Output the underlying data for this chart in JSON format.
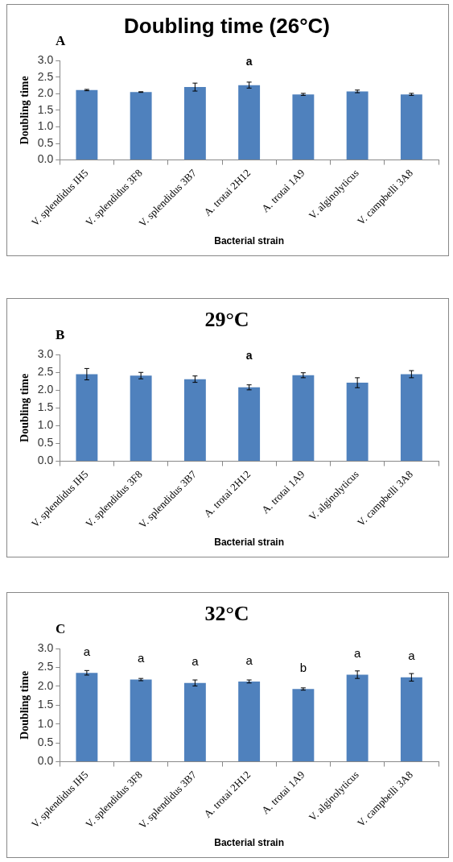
{
  "chart_data": [
    {
      "type": "bar",
      "title": "Doubling time (26°C)",
      "xlabel": "Bacterial strain",
      "ylabel": "Doubling time",
      "categories": [
        "V. splendidus IH5",
        "V. splendidus 3F8",
        "V. splendidus 3B7",
        "A. trotai 2H12",
        "A. trotai 1A9",
        "V. alginolyticus",
        "V. campbelli 3A8"
      ],
      "values": [
        2.11,
        2.05,
        2.2,
        2.26,
        1.98,
        2.07,
        1.98
      ],
      "errors": [
        0.02,
        0.01,
        0.12,
        0.09,
        0.03,
        0.04,
        0.03
      ],
      "color": "#4f81bd",
      "ylim": [
        0,
        3
      ],
      "yticks": [
        {
          "value": 0,
          "label": "0.0"
        },
        {
          "value": 0.5,
          "label": "0.5"
        },
        {
          "value": 1,
          "label": "1.0"
        },
        {
          "value": 1.5,
          "label": "1.5"
        },
        {
          "value": 2,
          "label": "2.0"
        },
        {
          "value": 2.5,
          "label": "2.5"
        },
        {
          "value": 3,
          "label": "3.0"
        }
      ],
      "grid": false,
      "legend": false,
      "annotations": [
        "A",
        "a"
      ]
    },
    {
      "type": "bar",
      "title": "29°C",
      "xlabel": "Bacterial strain",
      "ylabel": "Doubling time",
      "categories": [
        "V. splendidus IH5",
        "V. splendidus 3F8",
        "V. splendidus 3B7",
        "A. trotai 2H12",
        "A. trotai 1A9",
        "V. alginolyticus",
        "V. campbelli 3A8"
      ],
      "values": [
        2.45,
        2.41,
        2.31,
        2.08,
        2.42,
        2.21,
        2.45
      ],
      "errors": [
        0.16,
        0.09,
        0.09,
        0.07,
        0.07,
        0.14,
        0.1
      ],
      "color": "#4f81bd",
      "ylim": [
        0,
        3
      ],
      "yticks": [
        {
          "value": 0,
          "label": "0.0"
        },
        {
          "value": 0.5,
          "label": "0.5"
        },
        {
          "value": 1,
          "label": "1.0"
        },
        {
          "value": 1.5,
          "label": "1.5"
        },
        {
          "value": 2,
          "label": "2.0"
        },
        {
          "value": 2.5,
          "label": "2.5"
        },
        {
          "value": 3,
          "label": "3.0"
        }
      ],
      "grid": false,
      "legend": false,
      "annotations": [
        "B",
        "a"
      ]
    },
    {
      "type": "bar",
      "title": "32°C",
      "xlabel": "Bacterial strain",
      "ylabel": "Doubling time",
      "categories": [
        "V. splendidus IH5",
        "V. splendidus 3F8",
        "V. splendidus 3B7",
        "A. trotai 2H12",
        "A. trotai 1A9",
        "V. alginolyticus",
        "V. campbelli 3A8"
      ],
      "values": [
        2.36,
        2.18,
        2.09,
        2.13,
        1.93,
        2.31,
        2.24
      ],
      "errors": [
        0.06,
        0.03,
        0.08,
        0.04,
        0.03,
        0.1,
        0.1
      ],
      "color": "#4f81bd",
      "ylim": [
        0,
        3
      ],
      "yticks": [
        {
          "value": 0,
          "label": "0.0"
        },
        {
          "value": 0.5,
          "label": "0.5"
        },
        {
          "value": 1,
          "label": "1.0"
        },
        {
          "value": 1.5,
          "label": "1.5"
        },
        {
          "value": 2,
          "label": "2.0"
        },
        {
          "value": 2.5,
          "label": "2.5"
        },
        {
          "value": 3,
          "label": "3.0"
        }
      ],
      "grid": false,
      "legend": false,
      "annotations": [
        "C",
        "a",
        "a",
        "a",
        "a",
        "b",
        "a",
        "a"
      ]
    }
  ]
}
